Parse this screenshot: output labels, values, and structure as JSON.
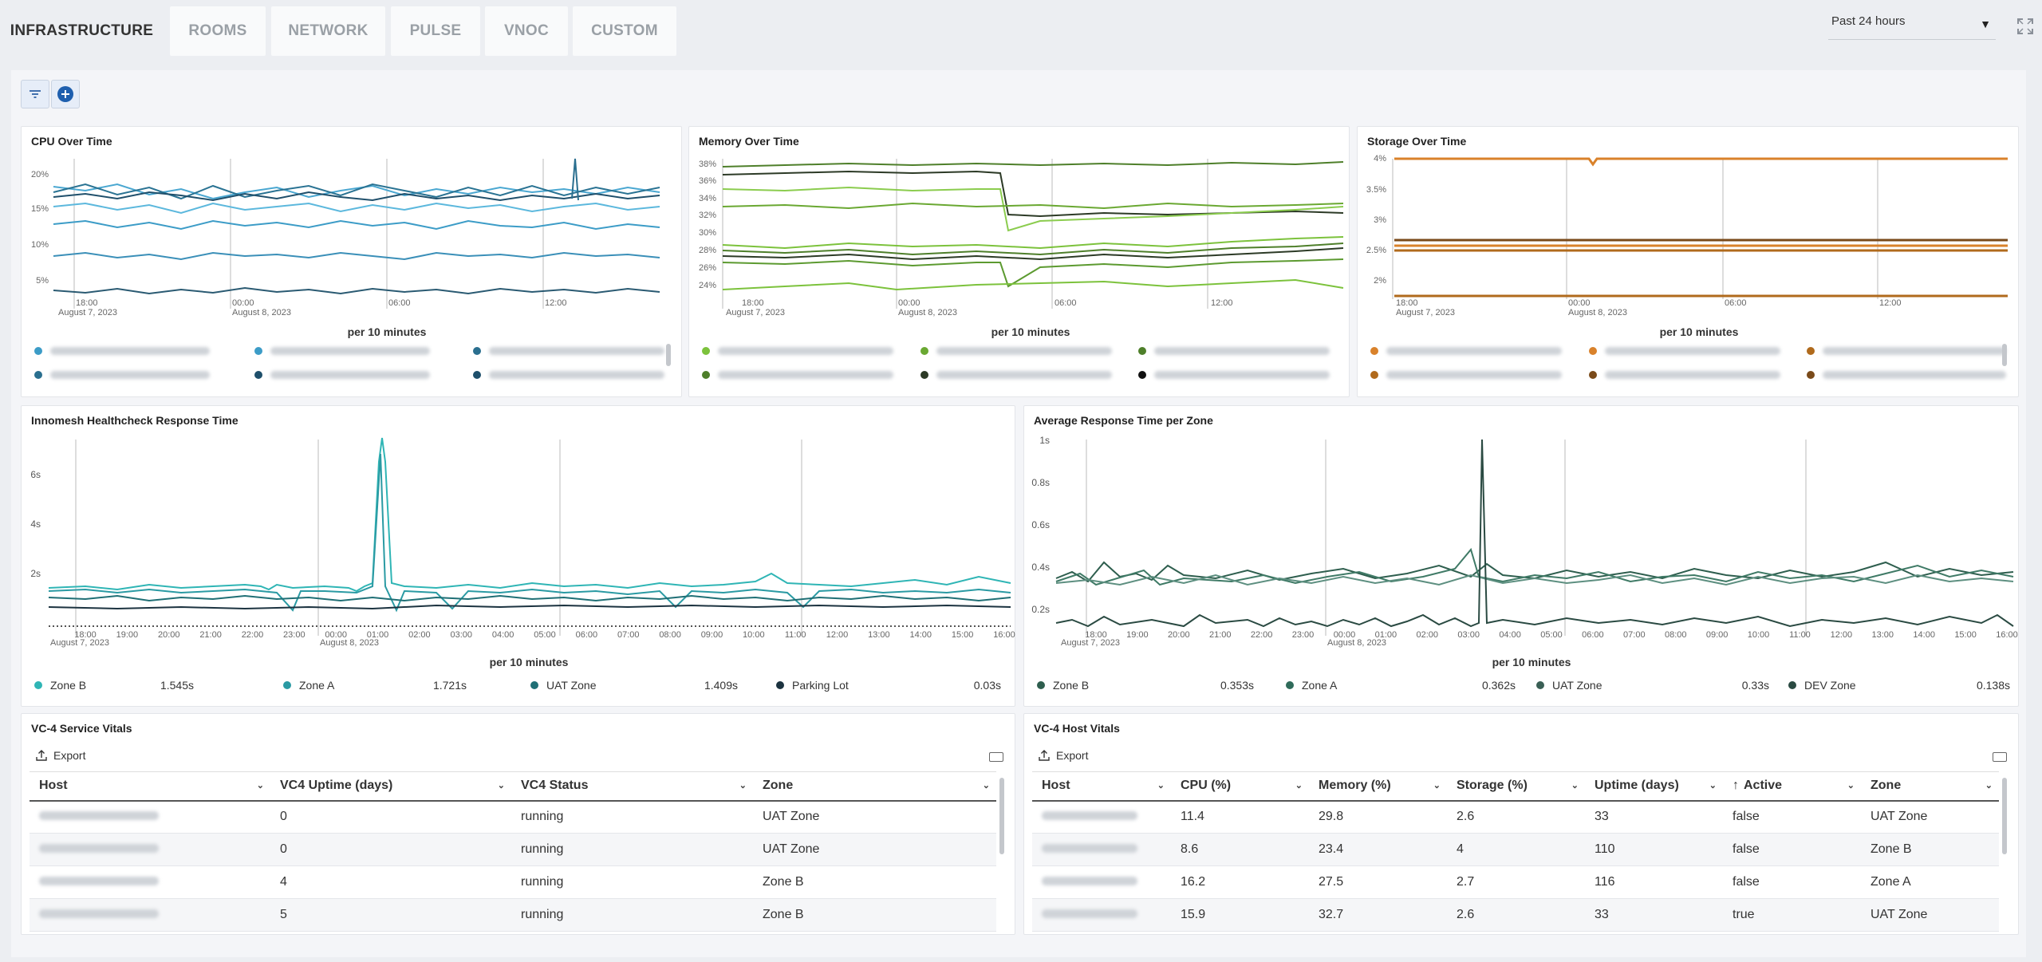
{
  "tabs": [
    {
      "label": "INFRASTRUCTURE",
      "active": true
    },
    {
      "label": "ROOMS",
      "active": false
    },
    {
      "label": "NETWORK",
      "active": false
    },
    {
      "label": "PULSE",
      "active": false
    },
    {
      "label": "VNOC",
      "active": false
    },
    {
      "label": "CUSTOM",
      "active": false
    }
  ],
  "time_range": {
    "selected": "Past 24 hours"
  },
  "colors": {
    "accent": "#1e73be",
    "cpu": [
      "#3c9cc7",
      "#2a6f8f",
      "#1e4f6b"
    ],
    "memory": [
      "#7cc23c",
      "#4e7f2a",
      "#2c3a26"
    ],
    "storage": [
      "#d9822b",
      "#b06a1c",
      "#7a4a1a"
    ]
  },
  "panels": {
    "cpu": {
      "title": "CPU Over Time",
      "y_ticks": [
        "20%",
        "15%",
        "10%",
        "5%"
      ],
      "x_ticks": [
        {
          "label": "18:00",
          "sub": "August 7, 2023"
        },
        {
          "label": "00:00",
          "sub": "August 8, 2023"
        },
        {
          "label": "06:00",
          "sub": ""
        },
        {
          "label": "12:00",
          "sub": ""
        }
      ],
      "footer": "per 10 minutes"
    },
    "memory": {
      "title": "Memory Over Time",
      "y_ticks": [
        "38%",
        "36%",
        "34%",
        "32%",
        "30%",
        "28%",
        "26%",
        "24%"
      ],
      "x_ticks": [
        {
          "label": "18:00",
          "sub": "August 7, 2023"
        },
        {
          "label": "00:00",
          "sub": "August 8, 2023"
        },
        {
          "label": "06:00",
          "sub": ""
        },
        {
          "label": "12:00",
          "sub": ""
        }
      ],
      "footer": "per 10 minutes"
    },
    "storage": {
      "title": "Storage Over Time",
      "y_ticks": [
        "4%",
        "3.5%",
        "3%",
        "2.5%",
        "2%"
      ],
      "x_ticks": [
        {
          "label": "18:00",
          "sub": "August 7, 2023"
        },
        {
          "label": "00:00",
          "sub": "August 8, 2023"
        },
        {
          "label": "06:00",
          "sub": ""
        },
        {
          "label": "12:00",
          "sub": ""
        }
      ],
      "footer": "per 10 minutes"
    },
    "health": {
      "title": "Innomesh Healthcheck Response Time",
      "y_ticks": [
        "6s",
        "4s",
        "2s"
      ],
      "x_ticks": [
        "18:00",
        "19:00",
        "20:00",
        "21:00",
        "22:00",
        "23:00",
        "00:00",
        "01:00",
        "02:00",
        "03:00",
        "04:00",
        "05:00",
        "06:00",
        "07:00",
        "08:00",
        "09:00",
        "10:00",
        "11:00",
        "12:00",
        "13:00",
        "14:00",
        "15:00",
        "16:00"
      ],
      "date_labels": [
        "August 7, 2023",
        "August 8, 2023"
      ],
      "footer": "per 10 minutes",
      "legend": [
        {
          "name": "Zone B",
          "value": "1.545s",
          "color": "#2fb5b5"
        },
        {
          "name": "Zone A",
          "value": "1.721s",
          "color": "#2a9aa3"
        },
        {
          "name": "UAT Zone",
          "value": "1.409s",
          "color": "#1f6f75"
        },
        {
          "name": "Parking Lot",
          "value": "0.03s",
          "color": "#1c3340"
        }
      ]
    },
    "zone": {
      "title": "Average Response Time per Zone",
      "y_ticks": [
        "1s",
        "0.8s",
        "0.6s",
        "0.4s",
        "0.2s"
      ],
      "x_ticks": [
        "18:00",
        "19:00",
        "20:00",
        "21:00",
        "22:00",
        "23:00",
        "00:00",
        "01:00",
        "02:00",
        "03:00",
        "04:00",
        "05:00",
        "06:00",
        "07:00",
        "08:00",
        "09:00",
        "10:00",
        "11:00",
        "12:00",
        "13:00",
        "14:00",
        "15:00",
        "16:00"
      ],
      "date_labels": [
        "August 7, 2023",
        "August 8, 2023"
      ],
      "footer": "per 10 minutes",
      "legend": [
        {
          "name": "Zone B",
          "value": "0.353s",
          "color": "#2e5e4e"
        },
        {
          "name": "Zone A",
          "value": "0.362s",
          "color": "#2f6b5a"
        },
        {
          "name": "UAT Zone",
          "value": "0.33s",
          "color": "#3a5f55"
        },
        {
          "name": "DEV Zone",
          "value": "0.138s",
          "color": "#2a4a42"
        }
      ]
    },
    "service_vitals": {
      "title": "VC-4 Service Vitals",
      "export_label": "Export",
      "columns": [
        "Host",
        "VC4 Uptime (days)",
        "VC4 Status",
        "Zone"
      ],
      "rows": [
        {
          "uptime": "0",
          "status": "running",
          "zone": "UAT Zone"
        },
        {
          "uptime": "0",
          "status": "running",
          "zone": "UAT Zone"
        },
        {
          "uptime": "4",
          "status": "running",
          "zone": "Zone B"
        },
        {
          "uptime": "5",
          "status": "running",
          "zone": "Zone B"
        }
      ]
    },
    "host_vitals": {
      "title": "VC-4 Host Vitals",
      "export_label": "Export",
      "columns": [
        "Host",
        "CPU (%)",
        "Memory (%)",
        "Storage (%)",
        "Uptime (days)",
        "Active",
        "Zone"
      ],
      "rows": [
        {
          "cpu": "11.4",
          "memory": "29.8",
          "storage": "2.6",
          "uptime": "33",
          "active": "false",
          "zone": "UAT Zone"
        },
        {
          "cpu": "8.6",
          "memory": "23.4",
          "storage": "4",
          "uptime": "110",
          "active": "false",
          "zone": "Zone B"
        },
        {
          "cpu": "16.2",
          "memory": "27.5",
          "storage": "2.7",
          "uptime": "116",
          "active": "false",
          "zone": "Zone A"
        },
        {
          "cpu": "15.9",
          "memory": "32.7",
          "storage": "2.6",
          "uptime": "33",
          "active": "true",
          "zone": "UAT Zone"
        }
      ]
    }
  }
}
